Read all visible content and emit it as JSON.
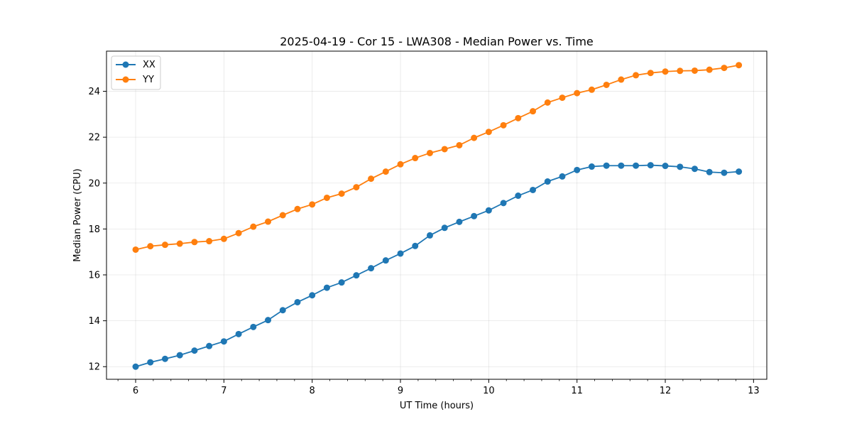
{
  "chart_data": {
    "type": "line",
    "title": "2025-04-19 - Cor 15 - LWA308 - Median Power vs. Time",
    "xlabel": "UT Time (hours)",
    "ylabel": "Median Power (CPU)",
    "xlim": [
      5.67,
      13.15
    ],
    "ylim": [
      11.45,
      25.75
    ],
    "xticks": [
      "6",
      "7",
      "8",
      "9",
      "10",
      "11",
      "12",
      "13"
    ],
    "yticks": [
      "12",
      "14",
      "16",
      "18",
      "20",
      "22",
      "24"
    ],
    "grid": true,
    "legend_position": "top-left",
    "colors": {
      "XX": "#1f77b4",
      "YY": "#ff7f0e"
    },
    "x": [
      6.0,
      6.1667,
      6.3333,
      6.5,
      6.6667,
      6.8333,
      7.0,
      7.1667,
      7.3333,
      7.5,
      7.6667,
      7.8333,
      8.0,
      8.1667,
      8.3333,
      8.5,
      8.6667,
      8.8333,
      9.0,
      9.1667,
      9.3333,
      9.5,
      9.6667,
      9.8333,
      10.0,
      10.1667,
      10.3333,
      10.5,
      10.6667,
      10.8333,
      11.0,
      11.1667,
      11.3333,
      11.5,
      11.6667,
      11.8333,
      12.0,
      12.1667,
      12.3333,
      12.5,
      12.6667,
      12.8333
    ],
    "series": [
      {
        "name": "XX",
        "values": [
          12.0,
          12.19,
          12.34,
          12.5,
          12.7,
          12.9,
          13.1,
          13.42,
          13.73,
          14.03,
          14.46,
          14.81,
          15.11,
          15.44,
          15.67,
          15.98,
          16.29,
          16.63,
          16.93,
          17.26,
          17.72,
          18.05,
          18.31,
          18.56,
          18.81,
          19.13,
          19.45,
          19.7,
          20.07,
          20.29,
          20.57,
          20.72,
          20.76,
          20.76,
          20.76,
          20.78,
          20.75,
          20.71,
          20.62,
          20.48,
          20.45,
          20.5
        ]
      },
      {
        "name": "YY",
        "values": [
          17.1,
          17.25,
          17.31,
          17.36,
          17.43,
          17.47,
          17.57,
          17.82,
          18.1,
          18.32,
          18.6,
          18.87,
          19.07,
          19.36,
          19.54,
          19.82,
          20.19,
          20.5,
          20.82,
          21.09,
          21.31,
          21.48,
          21.65,
          21.97,
          22.23,
          22.52,
          22.83,
          23.13,
          23.51,
          23.72,
          23.92,
          24.07,
          24.28,
          24.51,
          24.7,
          24.8,
          24.86,
          24.89,
          24.9,
          24.94,
          25.02,
          25.14
        ]
      }
    ]
  }
}
